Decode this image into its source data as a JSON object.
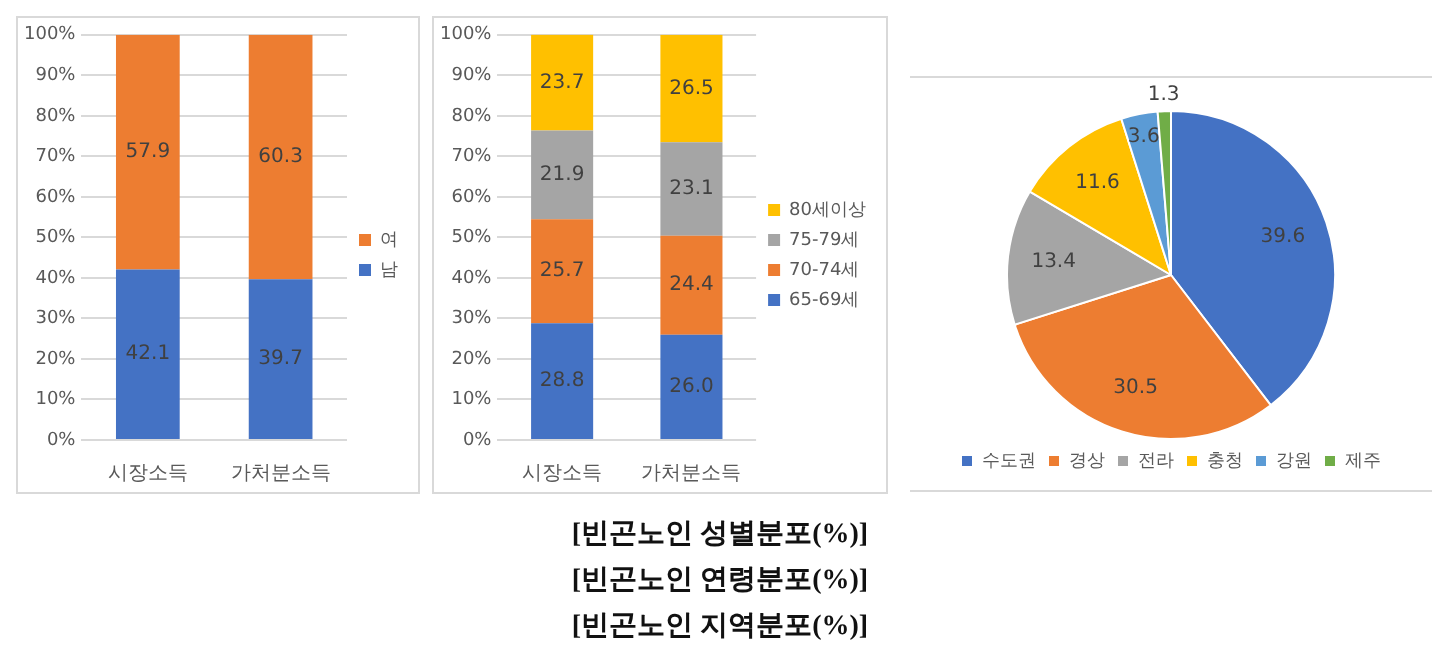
{
  "chart_data": [
    {
      "type": "bar",
      "stacked": true,
      "categories": [
        "시장소득",
        "가처분소득"
      ],
      "series": [
        {
          "name": "남",
          "color": "#4472c4",
          "values": [
            42.1,
            39.7
          ]
        },
        {
          "name": "여",
          "color": "#ed7d31",
          "values": [
            57.9,
            60.3
          ]
        }
      ],
      "ylim": [
        0,
        100
      ],
      "yticks": [
        {
          "value": 0,
          "label": "0%"
        },
        {
          "value": 10,
          "label": "10%"
        },
        {
          "value": 20,
          "label": "20%"
        },
        {
          "value": 30,
          "label": "30%"
        },
        {
          "value": 40,
          "label": "40%"
        },
        {
          "value": 50,
          "label": "50%"
        },
        {
          "value": 60,
          "label": "60%"
        },
        {
          "value": 70,
          "label": "70%"
        },
        {
          "value": 80,
          "label": "80%"
        },
        {
          "value": 90,
          "label": "90%"
        },
        {
          "value": 100,
          "label": "100%"
        }
      ],
      "grid": "y",
      "legend": "right",
      "data_labels": true,
      "annotations": [
        "[빈곤노인 성별분포(%)]"
      ]
    },
    {
      "type": "bar",
      "stacked": true,
      "categories": [
        "시장소득",
        "가처분소득"
      ],
      "series": [
        {
          "name": "65-69세",
          "color": "#4472c4",
          "values": [
            28.8,
            26.0
          ],
          "value_labels": [
            "28.8",
            "26.0"
          ]
        },
        {
          "name": "70-74세",
          "color": "#ed7d31",
          "values": [
            25.7,
            24.4
          ]
        },
        {
          "name": "75-79세",
          "color": "#a5a5a5",
          "values": [
            21.9,
            23.1
          ]
        },
        {
          "name": "80세이상",
          "color": "#ffc000",
          "values": [
            23.7,
            26.5
          ]
        }
      ],
      "ylim": [
        0,
        100
      ],
      "yticks": [
        {
          "value": 0,
          "label": "0%"
        },
        {
          "value": 10,
          "label": "10%"
        },
        {
          "value": 20,
          "label": "20%"
        },
        {
          "value": 30,
          "label": "30%"
        },
        {
          "value": 40,
          "label": "40%"
        },
        {
          "value": 50,
          "label": "50%"
        },
        {
          "value": 60,
          "label": "60%"
        },
        {
          "value": 70,
          "label": "70%"
        },
        {
          "value": 80,
          "label": "80%"
        },
        {
          "value": 90,
          "label": "90%"
        },
        {
          "value": 100,
          "label": "100%"
        }
      ],
      "grid": "y",
      "legend": "right",
      "data_labels": true,
      "annotations": [
        "[빈곤노인 연령분포(%)]"
      ]
    },
    {
      "type": "pie",
      "categories": [
        "수도권",
        "경상",
        "전라",
        "충청",
        "강원",
        "제주"
      ],
      "values": [
        39.6,
        30.5,
        13.4,
        11.6,
        3.6,
        1.3
      ],
      "colors": [
        "#4472c4",
        "#ed7d31",
        "#a5a5a5",
        "#ffc000",
        "#5b9bd5",
        "#70ad47"
      ],
      "legend": "bottom",
      "data_labels": true,
      "annotations": [
        "[빈곤노인 지역분포(%)]"
      ]
    }
  ]
}
